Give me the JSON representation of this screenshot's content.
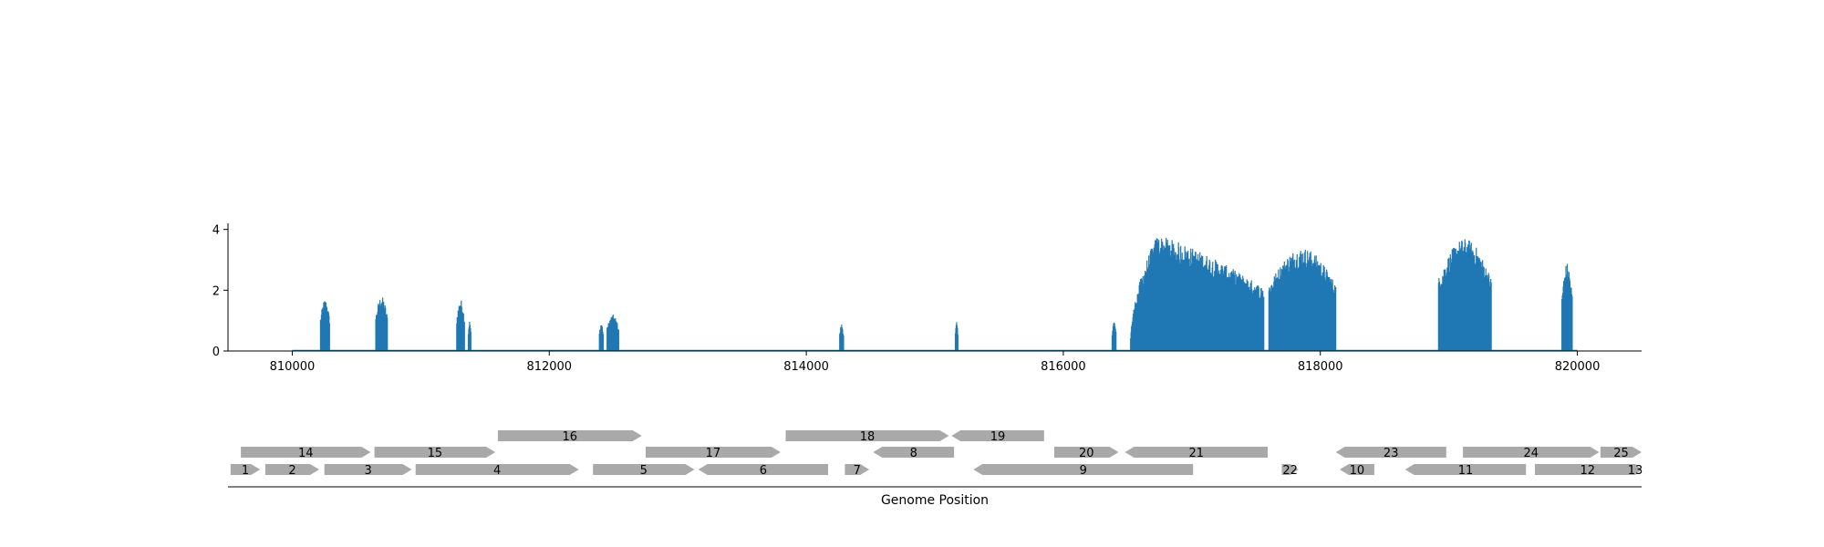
{
  "chart_data": [
    {
      "type": "area",
      "title": "",
      "xlabel": "",
      "ylabel": "",
      "xlim": [
        809500,
        820500
      ],
      "ylim": [
        0,
        4.2
      ],
      "x_ticks": [
        810000,
        812000,
        814000,
        816000,
        818000,
        820000
      ],
      "x_tick_labels": [
        "810000",
        "812000",
        "814000",
        "816000",
        "818000",
        "820000"
      ],
      "y_ticks": [
        0,
        2,
        4
      ],
      "y_tick_labels": [
        "0",
        "2",
        "4"
      ],
      "grid": false,
      "color": "#1f77b4",
      "series": [
        {
          "peaks": [
            {
              "start": 810220,
              "end": 810290,
              "max": 1.7
            },
            {
              "start": 810650,
              "end": 810740,
              "max": 1.8
            },
            {
              "start": 811280,
              "end": 811340,
              "max": 1.7
            },
            {
              "start": 811370,
              "end": 811390,
              "max": 1.0
            },
            {
              "start": 812390,
              "end": 812420,
              "max": 0.95
            },
            {
              "start": 812450,
              "end": 812540,
              "max": 1.2
            },
            {
              "start": 814260,
              "end": 814290,
              "max": 0.9
            },
            {
              "start": 815160,
              "end": 815180,
              "max": 0.95
            },
            {
              "start": 816380,
              "end": 816410,
              "max": 1.0
            },
            {
              "start": 816520,
              "end": 817560,
              "max": 3.8
            },
            {
              "start": 817600,
              "end": 818120,
              "max": 3.4
            },
            {
              "start": 818920,
              "end": 819330,
              "max": 3.7
            },
            {
              "start": 819880,
              "end": 819960,
              "max": 2.9
            }
          ]
        }
      ]
    },
    {
      "type": "gene-map",
      "xlabel": "Genome Position",
      "color": "#a9a9a9",
      "genes": [
        {
          "label": "1",
          "start": 809520,
          "end": 809750,
          "strand": "+",
          "row": 0
        },
        {
          "label": "2",
          "start": 809790,
          "end": 810210,
          "strand": "+",
          "row": 0
        },
        {
          "label": "3",
          "start": 810250,
          "end": 810930,
          "strand": "+",
          "row": 0
        },
        {
          "label": "4",
          "start": 810960,
          "end": 812230,
          "strand": "+",
          "row": 0
        },
        {
          "label": "5",
          "start": 812340,
          "end": 813130,
          "strand": "+",
          "row": 0
        },
        {
          "label": "6",
          "start": 813160,
          "end": 814170,
          "strand": "-",
          "row": 0
        },
        {
          "label": "7",
          "start": 814300,
          "end": 814490,
          "strand": "+",
          "row": 0
        },
        {
          "label": "8",
          "start": 814520,
          "end": 815150,
          "strand": "-",
          "row": 1
        },
        {
          "label": "9",
          "start": 815300,
          "end": 817010,
          "strand": "-",
          "row": 0
        },
        {
          "label": "10",
          "start": 818150,
          "end": 818420,
          "strand": "-",
          "row": 0
        },
        {
          "label": "11",
          "start": 818660,
          "end": 819600,
          "strand": "-",
          "row": 0
        },
        {
          "label": "12",
          "start": 819670,
          "end": 820490,
          "strand": "+",
          "row": 0
        },
        {
          "label": "13",
          "start": 820400,
          "end": 820500,
          "strand": "+",
          "row": 0
        },
        {
          "label": "14",
          "start": 809600,
          "end": 810610,
          "strand": "+",
          "row": 1
        },
        {
          "label": "15",
          "start": 810640,
          "end": 811580,
          "strand": "+",
          "row": 1
        },
        {
          "label": "16",
          "start": 811600,
          "end": 812720,
          "strand": "+",
          "row": 2
        },
        {
          "label": "17",
          "start": 812750,
          "end": 813800,
          "strand": "+",
          "row": 1
        },
        {
          "label": "18",
          "start": 813840,
          "end": 815110,
          "strand": "+",
          "row": 2
        },
        {
          "label": "19",
          "start": 815130,
          "end": 815850,
          "strand": "-",
          "row": 2
        },
        {
          "label": "20",
          "start": 815930,
          "end": 816430,
          "strand": "+",
          "row": 1
        },
        {
          "label": "21",
          "start": 816480,
          "end": 817590,
          "strand": "-",
          "row": 1
        },
        {
          "label": "22",
          "start": 817700,
          "end": 817830,
          "strand": "+",
          "row": 0
        },
        {
          "label": "23",
          "start": 818120,
          "end": 818980,
          "strand": "-",
          "row": 1
        },
        {
          "label": "24",
          "start": 819110,
          "end": 820170,
          "strand": "+",
          "row": 1
        },
        {
          "label": "25",
          "start": 820180,
          "end": 820500,
          "strand": "+",
          "row": 1
        }
      ]
    }
  ]
}
